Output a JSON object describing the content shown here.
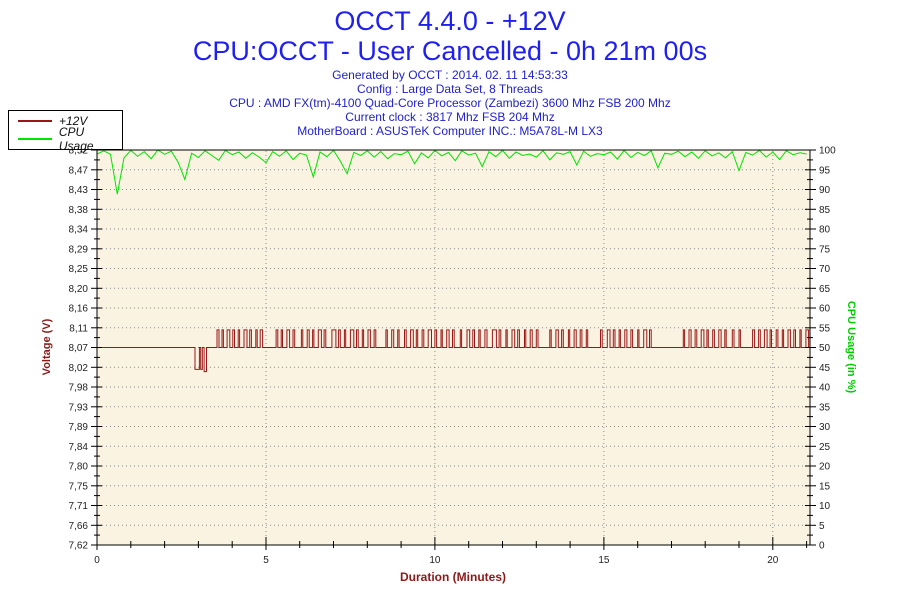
{
  "header": {
    "title": "OCCT 4.4.0 - +12V",
    "subtitle": "CPU:OCCT - User Cancelled - 0h 21m 00s",
    "info_lines": [
      "Generated by OCCT : 2014. 02. 11 14:53:33",
      "Config : Large Data Set, 8 Threads",
      "CPU : AMD FX(tm)-4100 Quad-Core Processor (Zambezi) 3600 Mhz FSB 200 Mhz",
      "Current clock : 3817 Mhz FSB 204 Mhz",
      "MotherBoard : ASUSTeK Computer INC.: M5A78L-M LX3"
    ]
  },
  "legend": {
    "items": [
      {
        "label": "+12V",
        "color": "#9a1616"
      },
      {
        "label": "CPU Usage",
        "color": "#00e400"
      }
    ]
  },
  "colors": {
    "title_blue": "#1f1ff0",
    "info_blue": "#2121cd",
    "voltage_red": "#9a1616",
    "cpu_green": "#00e400",
    "left_axis_title": "#8b1a1a",
    "right_axis_title": "#00cc00",
    "plot_background": "#faf3e2",
    "grid_dots": "#8a8a8a",
    "tick_text": "#222222"
  },
  "chart_data": {
    "type": "line",
    "title": "OCCT 4.4.0 - +12V",
    "grid": "dotted",
    "x_axis": {
      "label": "Duration (Minutes)",
      "min": 0,
      "max": 21.1,
      "major_ticks": [
        0,
        5,
        10,
        15,
        20
      ],
      "major_tick_labels": [
        "0",
        "5",
        "10",
        "15",
        "20"
      ],
      "minor_step": 1
    },
    "left_axis": {
      "label": "Voltage (V)",
      "min": 7.62,
      "max": 8.52,
      "tick_labels": [
        "8,52",
        "8,47",
        "8,43",
        "8,38",
        "8,34",
        "8,29",
        "8,25",
        "8,20",
        "8,16",
        "8,11",
        "8,07",
        "8,02",
        "7,98",
        "7,93",
        "7,89",
        "7,84",
        "7,80",
        "7,75",
        "7,71",
        "7,66",
        "7,62"
      ],
      "color": "#8b1a1a"
    },
    "right_axis": {
      "label": "CPU Usage (in %)",
      "min": 0,
      "max": 100,
      "tick_labels": [
        "100",
        "95",
        "90",
        "85",
        "80",
        "75",
        "70",
        "65",
        "60",
        "55",
        "50",
        "45",
        "40",
        "35",
        "30",
        "25",
        "20",
        "15",
        "10",
        "5",
        "0"
      ],
      "color": "#00cc00"
    },
    "series": [
      {
        "name": "+12V",
        "axis": "left",
        "color": "#9a1616",
        "baseline": 8.07,
        "pulse_level": 8.11,
        "end_time": 21.08,
        "dips": [
          [
            2.9,
            0.13,
            8.02
          ],
          [
            3.07,
            0.045,
            8.02
          ],
          [
            3.17,
            0.07,
            8.015
          ]
        ],
        "pulses": [
          [
            3.55,
            0.06
          ],
          [
            3.7,
            0.04
          ],
          [
            3.85,
            0.08
          ],
          [
            4.02,
            0.05
          ],
          [
            4.18,
            0.04
          ],
          [
            4.35,
            0.09
          ],
          [
            4.52,
            0.05
          ],
          [
            4.7,
            0.04
          ],
          [
            4.83,
            0.07
          ],
          [
            5.3,
            0.05
          ],
          [
            5.45,
            0.04
          ],
          [
            5.62,
            0.08
          ],
          [
            5.8,
            0.05
          ],
          [
            6.05,
            0.04
          ],
          [
            6.22,
            0.06
          ],
          [
            6.38,
            0.04
          ],
          [
            6.55,
            0.09
          ],
          [
            6.72,
            0.05
          ],
          [
            6.95,
            0.12
          ],
          [
            7.15,
            0.05
          ],
          [
            7.32,
            0.04
          ],
          [
            7.5,
            0.1
          ],
          [
            7.68,
            0.05
          ],
          [
            7.85,
            0.04
          ],
          [
            8.02,
            0.07
          ],
          [
            8.2,
            0.05
          ],
          [
            8.55,
            0.04
          ],
          [
            8.72,
            0.06
          ],
          [
            8.9,
            0.04
          ],
          [
            9.1,
            0.05
          ],
          [
            9.28,
            0.08
          ],
          [
            9.45,
            0.04
          ],
          [
            9.62,
            0.05
          ],
          [
            9.8,
            0.1
          ],
          [
            10.0,
            0.05
          ],
          [
            10.18,
            0.04
          ],
          [
            10.35,
            0.07
          ],
          [
            10.52,
            0.05
          ],
          [
            10.75,
            0.04
          ],
          [
            10.95,
            0.08
          ],
          [
            11.12,
            0.05
          ],
          [
            11.3,
            0.04
          ],
          [
            11.48,
            0.06
          ],
          [
            11.7,
            0.12
          ],
          [
            11.9,
            0.05
          ],
          [
            12.1,
            0.04
          ],
          [
            12.28,
            0.08
          ],
          [
            12.45,
            0.05
          ],
          [
            12.65,
            0.04
          ],
          [
            12.82,
            0.06
          ],
          [
            13.0,
            0.05
          ],
          [
            13.4,
            0.04
          ],
          [
            13.58,
            0.07
          ],
          [
            13.75,
            0.05
          ],
          [
            13.95,
            0.04
          ],
          [
            14.12,
            0.06
          ],
          [
            14.3,
            0.05
          ],
          [
            14.48,
            0.04
          ],
          [
            14.9,
            0.05
          ],
          [
            15.1,
            0.08
          ],
          [
            15.28,
            0.05
          ],
          [
            15.45,
            0.04
          ],
          [
            15.62,
            0.06
          ],
          [
            15.8,
            0.05
          ],
          [
            16.0,
            0.04
          ],
          [
            16.18,
            0.09
          ],
          [
            16.35,
            0.05
          ],
          [
            17.35,
            0.04
          ],
          [
            17.52,
            0.06
          ],
          [
            17.7,
            0.05
          ],
          [
            17.88,
            0.08
          ],
          [
            18.05,
            0.04
          ],
          [
            18.22,
            0.05
          ],
          [
            18.4,
            0.07
          ],
          [
            18.58,
            0.04
          ],
          [
            18.8,
            0.05
          ],
          [
            19.0,
            0.04
          ],
          [
            19.4,
            0.06
          ],
          [
            19.58,
            0.05
          ],
          [
            19.75,
            0.08
          ],
          [
            19.92,
            0.04
          ],
          [
            20.1,
            0.05
          ],
          [
            20.28,
            0.04
          ],
          [
            20.45,
            0.07
          ],
          [
            20.62,
            0.05
          ],
          [
            20.8,
            0.04
          ],
          [
            20.98,
            0.08
          ]
        ]
      },
      {
        "name": "CPU Usage",
        "axis": "right",
        "color": "#00e400",
        "t0": 0,
        "dt": 0.2,
        "values": [
          99.0,
          99.8,
          98.9,
          88.8,
          98.0,
          99.9,
          98.4,
          99.6,
          97.8,
          100,
          98.9,
          99.7,
          96.9,
          92.5,
          99.2,
          98.1,
          99.8,
          98.6,
          97.4,
          99.9,
          98.8,
          99.5,
          97.9,
          99.3,
          98.2,
          96.8,
          99.6,
          98.4,
          99.8,
          97.6,
          99.2,
          98.7,
          93.2,
          99.5,
          98.3,
          99.9,
          97.2,
          94.0,
          99.4,
          98.6,
          99.8,
          98.2,
          99.6,
          97.8,
          99.1,
          98.8,
          99.7,
          96.5,
          99.3,
          98.0,
          99.9,
          98.5,
          99.4,
          97.3,
          99.8,
          98.7,
          99.2,
          95.8,
          99.6,
          98.3,
          99.9,
          97.9,
          99.5,
          98.6,
          99.0,
          98.2,
          99.8,
          97.5,
          99.3,
          98.9,
          99.6,
          96.2,
          99.7,
          98.4,
          99.1,
          98.8,
          99.5,
          97.7,
          99.9,
          98.1,
          99.4,
          98.6,
          99.8,
          95.5,
          99.2,
          98.9,
          99.7,
          98.3,
          99.5,
          97.9,
          99.8,
          98.5,
          99.3,
          98.0,
          99.6,
          94.8,
          99.4,
          98.7,
          99.9,
          98.2,
          99.5,
          97.6,
          99.8,
          98.8,
          99.3,
          99.0
        ]
      }
    ]
  }
}
